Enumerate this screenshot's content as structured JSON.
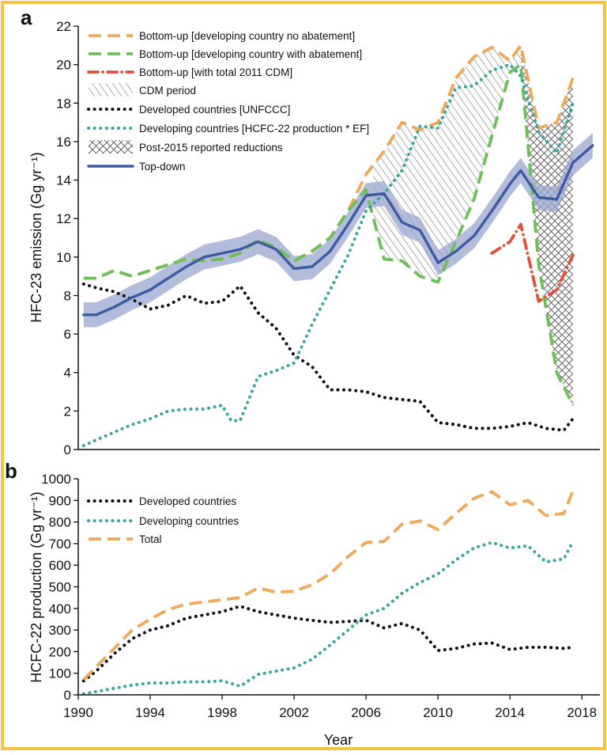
{
  "figure": {
    "border_color": "#f5c242",
    "panel_a_label": "a",
    "panel_b_label": "b",
    "xlabel": "Year"
  },
  "colors": {
    "orange": "#f0a85a",
    "green": "#6dbf5a",
    "red": "#e0503a",
    "black": "#111111",
    "teal": "#3aa6a0",
    "blue": "#3e5aa0",
    "band": "#9aa6cf",
    "hatch": "#777777"
  },
  "chart_data": [
    {
      "type": "line",
      "panel": "a",
      "ylabel": "HFC-23 emission (Gg yr⁻¹)",
      "xlim": [
        1990,
        2019
      ],
      "ylim": [
        0,
        22
      ],
      "yticks": [
        "0",
        "2",
        "4",
        "6",
        "8",
        "10",
        "12",
        "14",
        "16",
        "18",
        "20",
        "22"
      ],
      "legend": [
        {
          "label": "Bottom-up [developing country no abatement]",
          "style": "dash",
          "color": "orange"
        },
        {
          "label": "Bottom-up [developing country with abatement]",
          "style": "dash",
          "color": "green"
        },
        {
          "label": "Bottom-up [with total 2011 CDM]",
          "style": "dashdot",
          "color": "red"
        },
        {
          "label": "CDM period",
          "style": "hatch",
          "color": "hatch"
        },
        {
          "label": "Developed countries [UNFCCC]",
          "style": "dot",
          "color": "black"
        },
        {
          "label": "Developing countries [HCFC-22 production * EF]",
          "style": "dot",
          "color": "teal"
        },
        {
          "label": "Post-2015 reported reductions",
          "style": "crosshatch",
          "color": "hatch"
        },
        {
          "label": "Top-down",
          "style": "solid",
          "color": "blue"
        }
      ],
      "series": [
        {
          "key": "no_abatement",
          "x": [
            1990.3,
            1991,
            1992,
            1993,
            1994,
            1995,
            1996,
            1997,
            1998,
            1999,
            2000,
            2001,
            2002,
            2003,
            2004,
            2005,
            2006,
            2007,
            2008,
            2009,
            2010,
            2011,
            2012,
            2013,
            2014,
            2014.6,
            2015.6,
            2016.6,
            2017.5
          ],
          "y": [
            8.9,
            8.9,
            9.3,
            9.0,
            9.3,
            9.6,
            9.9,
            9.8,
            9.9,
            10.2,
            10.9,
            10.5,
            9.8,
            10.3,
            11.0,
            12.4,
            14.3,
            15.5,
            17.0,
            16.6,
            17.0,
            19.3,
            20.4,
            20.9,
            20.2,
            21.0,
            16.7,
            17.0,
            19.3
          ]
        },
        {
          "key": "with_abatement",
          "x": [
            1990.3,
            1991,
            1992,
            1993,
            1994,
            1995,
            1996,
            1997,
            1998,
            1999,
            2000,
            2001,
            2002,
            2003,
            2004,
            2005,
            2006,
            2007,
            2008,
            2009,
            2010,
            2011,
            2012,
            2013,
            2014,
            2014.6,
            2015.6,
            2016.6,
            2017.5
          ],
          "y": [
            8.9,
            8.9,
            9.3,
            9.0,
            9.3,
            9.6,
            9.9,
            9.8,
            9.9,
            10.2,
            10.9,
            10.5,
            9.8,
            10.3,
            11.0,
            12.4,
            13.5,
            9.9,
            9.8,
            9.0,
            8.7,
            10.8,
            13.0,
            16.3,
            19.6,
            20.0,
            9.6,
            4.0,
            2.3
          ]
        },
        {
          "key": "cdm_2011",
          "x": [
            2013.0,
            2014.0,
            2014.6,
            2015.6,
            2016.6,
            2017.5
          ],
          "y": [
            10.2,
            10.8,
            11.7,
            7.7,
            8.3,
            10.1
          ]
        },
        {
          "key": "developed_unfccc",
          "x": [
            1990.3,
            1991,
            1992,
            1993,
            1994,
            1995,
            1996,
            1997,
            1998,
            1999,
            2000,
            2001,
            2002,
            2003,
            2004,
            2005,
            2006,
            2007,
            2008,
            2009,
            2010,
            2011,
            2012,
            2013,
            2014,
            2015,
            2016,
            2017,
            2017.5
          ],
          "y": [
            8.6,
            8.4,
            8.2,
            7.8,
            7.3,
            7.5,
            8.0,
            7.6,
            7.7,
            8.5,
            7.1,
            6.3,
            4.9,
            4.3,
            3.1,
            3.1,
            3.0,
            2.7,
            2.6,
            2.5,
            1.4,
            1.3,
            1.1,
            1.1,
            1.2,
            1.4,
            1.1,
            1.0,
            1.6
          ]
        },
        {
          "key": "developing_hcfc22",
          "x": [
            1990.3,
            1991,
            1992,
            1993,
            1994,
            1995,
            1996,
            1997,
            1998,
            1998.5,
            1999,
            2000,
            2001,
            2002,
            2003,
            2004,
            2005,
            2006,
            2007,
            2008,
            2009,
            2010,
            2011,
            2012,
            2013,
            2014,
            2014.6,
            2015.6,
            2016.6,
            2017.5
          ],
          "y": [
            0.2,
            0.5,
            0.9,
            1.3,
            1.6,
            2.0,
            2.1,
            2.1,
            2.3,
            1.5,
            1.5,
            3.8,
            4.1,
            4.5,
            6.5,
            8.3,
            10.1,
            12.4,
            13.3,
            14.5,
            16.8,
            16.7,
            18.8,
            18.9,
            19.7,
            20.0,
            19.4,
            16.5,
            15.4,
            18.0
          ]
        },
        {
          "key": "top_down",
          "x": [
            1990.3,
            1991,
            1992,
            1993,
            1994,
            1995,
            1996,
            1997,
            1998,
            1999,
            2000,
            2001,
            2002,
            2003,
            2004,
            2005,
            2006,
            2007,
            2008,
            2009,
            2010,
            2011,
            2012,
            2013,
            2014,
            2014.6,
            2015.6,
            2016.6,
            2017.5,
            2018.6
          ],
          "y": [
            7.0,
            7.0,
            7.4,
            7.9,
            8.3,
            8.9,
            9.5,
            10.0,
            10.2,
            10.4,
            10.8,
            10.4,
            9.4,
            9.5,
            10.3,
            11.7,
            13.2,
            13.3,
            11.8,
            11.4,
            9.7,
            10.3,
            11.1,
            12.4,
            13.8,
            14.5,
            13.1,
            13.0,
            14.9,
            15.8
          ]
        }
      ],
      "band_halfwidth": 0.65
    },
    {
      "type": "line",
      "panel": "b",
      "ylabel": "HCFC-22 production (Gg yr⁻¹)",
      "xlim": [
        1990,
        2019
      ],
      "ylim": [
        0,
        1000
      ],
      "yticks": [
        "0",
        "100",
        "200",
        "300",
        "400",
        "500",
        "600",
        "700",
        "800",
        "900",
        "1000"
      ],
      "xticks": [
        "1990",
        "1994",
        "1998",
        "2002",
        "2006",
        "2010",
        "2014",
        "2018"
      ],
      "legend": [
        {
          "label": "Developed countries",
          "style": "dot",
          "color": "black"
        },
        {
          "label": "Developing countries",
          "style": "dot",
          "color": "teal"
        },
        {
          "label": "Total",
          "style": "dash",
          "color": "orange"
        }
      ],
      "series": [
        {
          "key": "developed",
          "x": [
            1990.3,
            1991,
            1992,
            1993,
            1994,
            1995,
            1996,
            1997,
            1998,
            1999,
            2000,
            2001,
            2002,
            2003,
            2004,
            2005,
            2006,
            2007,
            2008,
            2009,
            2010,
            2011,
            2012,
            2013,
            2014,
            2015,
            2016,
            2017,
            2017.5
          ],
          "y": [
            65,
            110,
            190,
            260,
            300,
            320,
            355,
            370,
            385,
            410,
            385,
            370,
            355,
            345,
            335,
            340,
            345,
            310,
            330,
            300,
            205,
            215,
            235,
            240,
            210,
            220,
            220,
            215,
            220
          ]
        },
        {
          "key": "developing",
          "x": [
            1990.3,
            1991,
            1992,
            1993,
            1994,
            1995,
            1996,
            1997,
            1998,
            1999,
            2000,
            2001,
            2002,
            2003,
            2004,
            2005,
            2006,
            2007,
            2008,
            2009,
            2010,
            2011,
            2012,
            2013,
            2014,
            2015,
            2016,
            2017,
            2017.5
          ],
          "y": [
            5,
            15,
            30,
            45,
            55,
            55,
            60,
            60,
            65,
            40,
            95,
            110,
            125,
            165,
            230,
            300,
            370,
            400,
            470,
            520,
            560,
            625,
            680,
            705,
            680,
            690,
            615,
            630,
            710
          ]
        },
        {
          "key": "total",
          "x": [
            1990.3,
            1991,
            1992,
            1993,
            1994,
            1995,
            1996,
            1997,
            1998,
            1999,
            2000,
            2001,
            2002,
            2003,
            2004,
            2005,
            2006,
            2007,
            2008,
            2009,
            2010,
            2011,
            2012,
            2013,
            2014,
            2015,
            2016,
            2017,
            2017.5
          ],
          "y": [
            70,
            130,
            215,
            300,
            350,
            395,
            420,
            430,
            440,
            450,
            495,
            475,
            480,
            510,
            560,
            640,
            705,
            710,
            790,
            805,
            765,
            840,
            910,
            940,
            880,
            900,
            830,
            840,
            945
          ]
        }
      ]
    }
  ]
}
